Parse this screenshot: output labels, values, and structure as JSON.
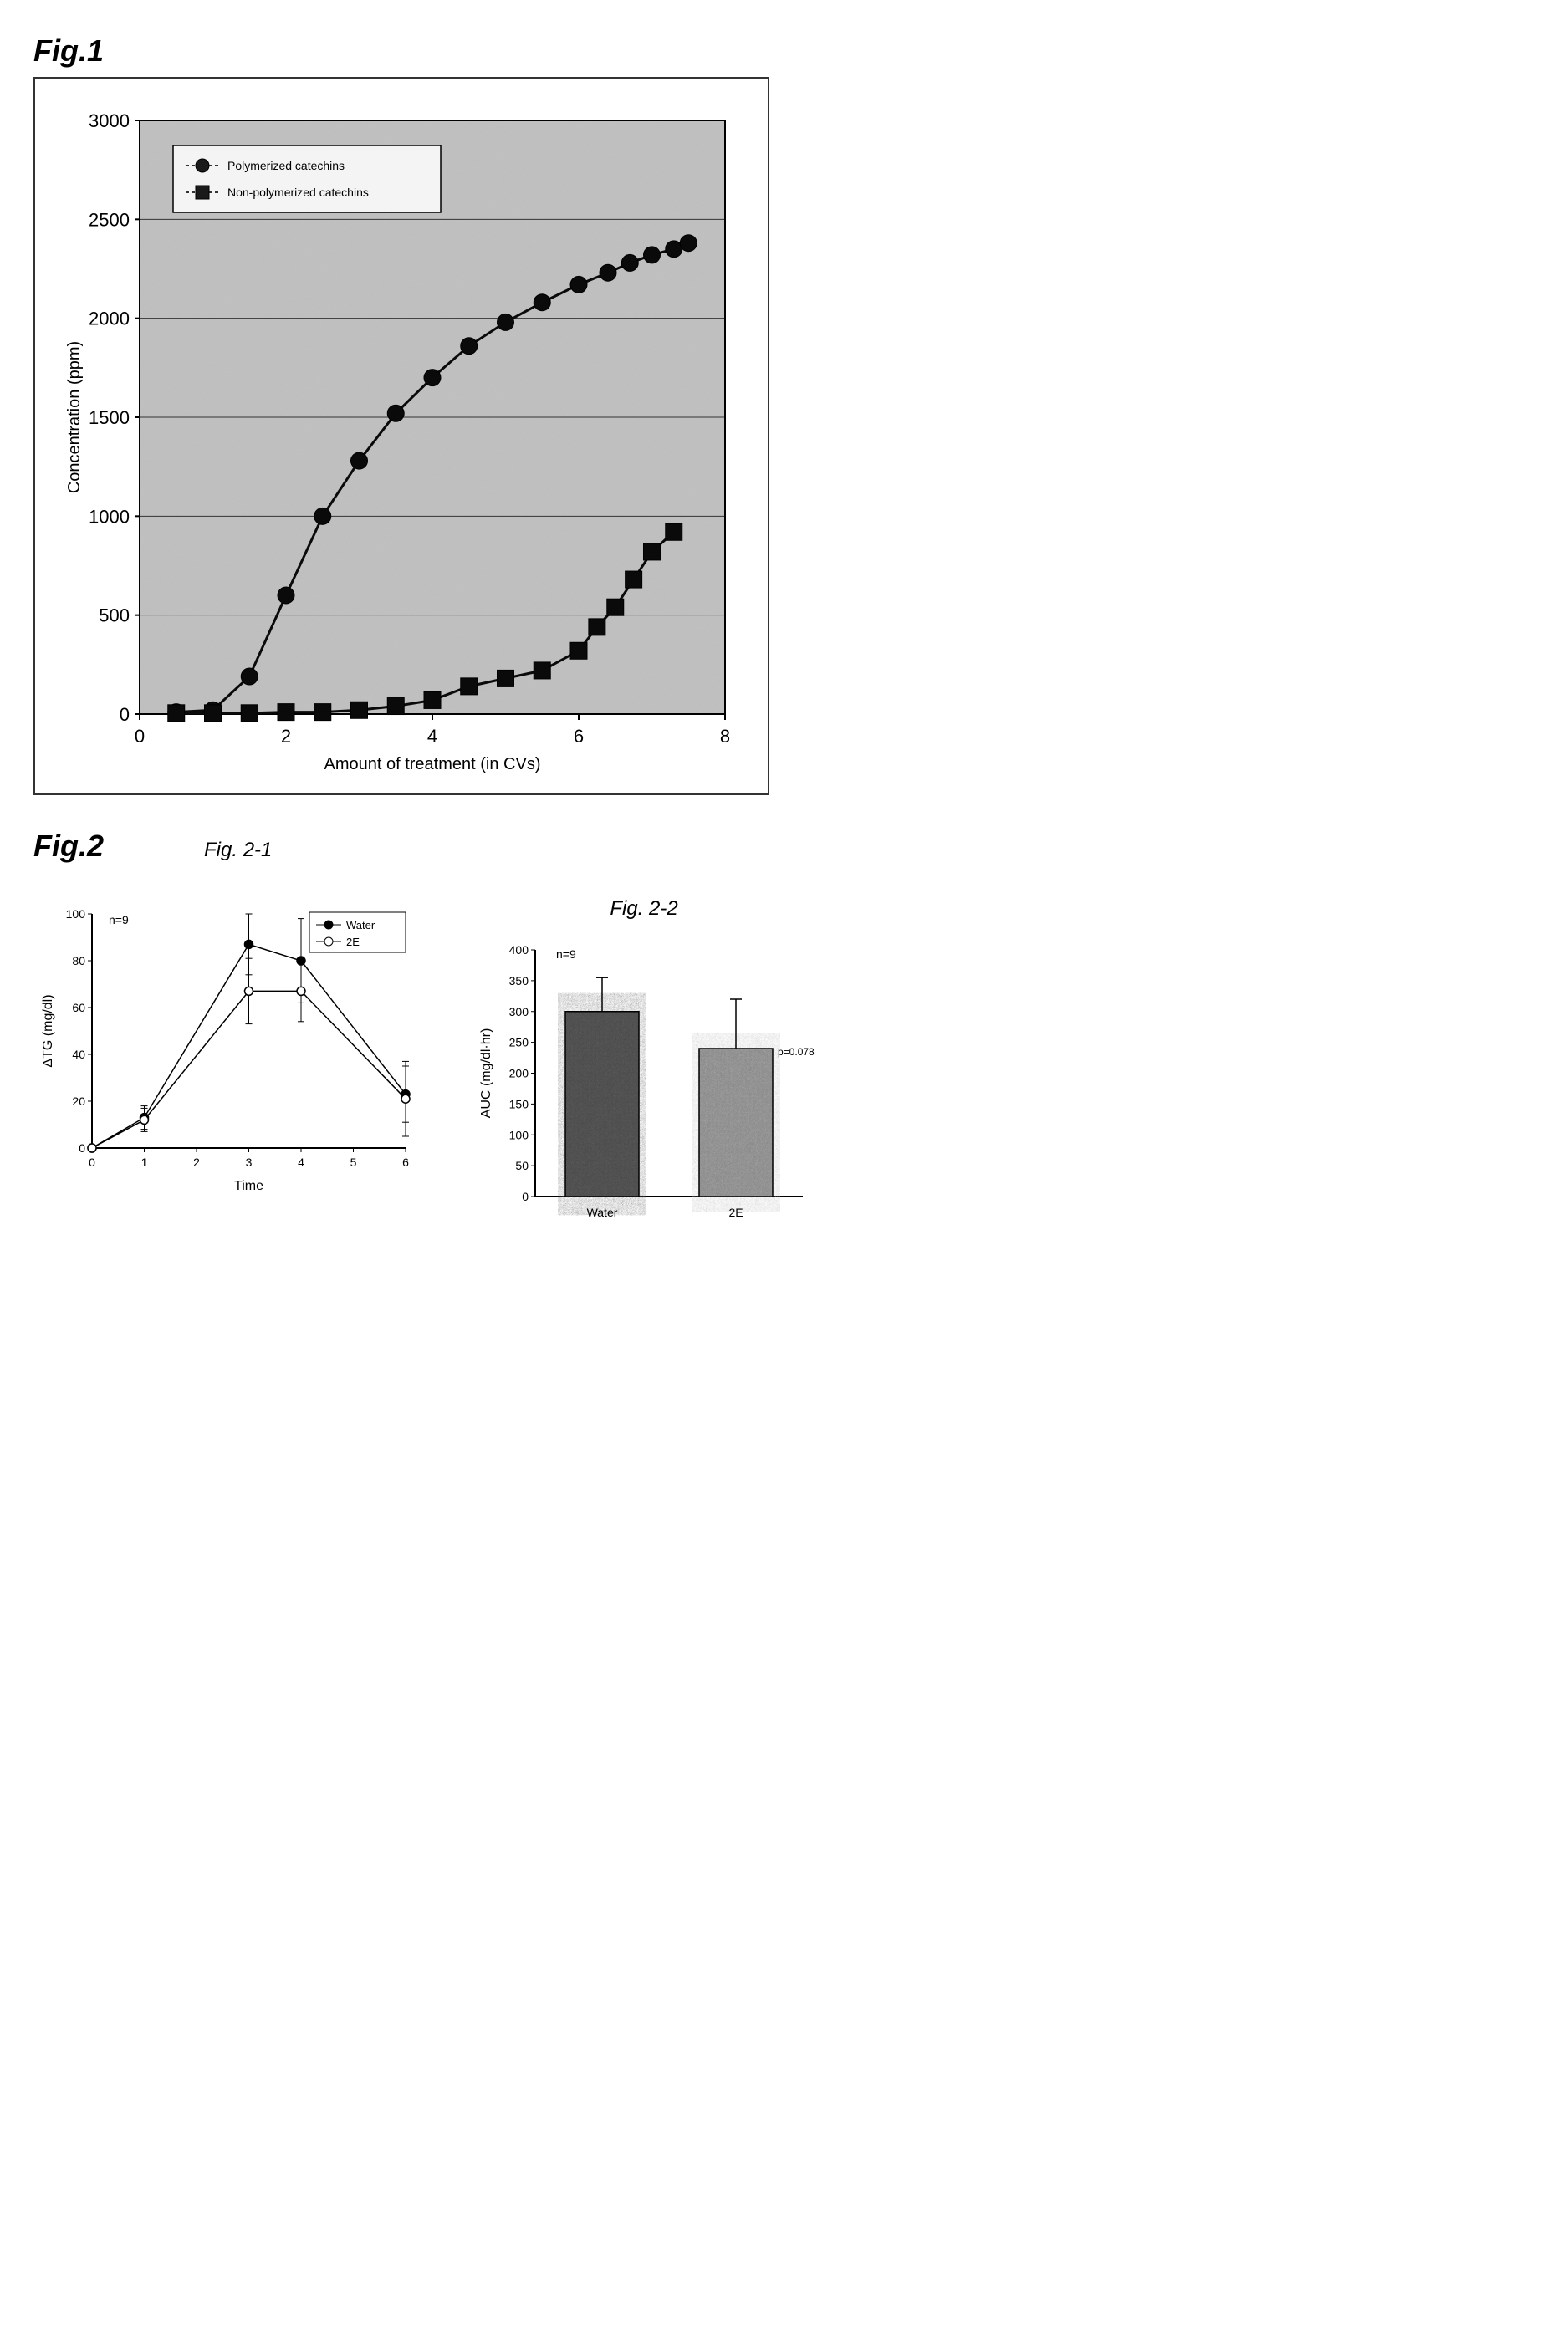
{
  "fig1": {
    "label": "Fig.1",
    "type": "line",
    "xlabel": "Amount of treatment (in CVs)",
    "ylabel": "Concentration (ppm)",
    "xlim": [
      0,
      8
    ],
    "ylim": [
      0,
      3000
    ],
    "xtick_step": 2,
    "ytick_step": 500,
    "background_texture": "noise",
    "plot_bg_low": "#8d8d8d",
    "plot_bg_high": "#d8d8d8",
    "grid_color": "#333333",
    "legend": {
      "items": [
        {
          "label": "Polymerized catechins",
          "marker": "circle",
          "fill": "#1a1a1a"
        },
        {
          "label": "Non-polymerized catechins",
          "marker": "square",
          "fill": "#1a1a1a"
        }
      ]
    },
    "series": [
      {
        "name": "Polymerized catechins",
        "marker": "circle",
        "color": "#0a0a0a",
        "line_width": 3,
        "marker_size": 10,
        "x": [
          0.5,
          1.0,
          1.5,
          2.0,
          2.5,
          3.0,
          3.5,
          4.0,
          4.5,
          5.0,
          5.5,
          6.0,
          6.4,
          6.7,
          7.0,
          7.3,
          7.5
        ],
        "y": [
          10,
          20,
          190,
          600,
          1000,
          1280,
          1520,
          1700,
          1860,
          1980,
          2080,
          2170,
          2230,
          2280,
          2320,
          2350,
          2380
        ]
      },
      {
        "name": "Non-polymerized catechins",
        "marker": "square",
        "color": "#0a0a0a",
        "line_width": 3,
        "marker_size": 10,
        "x": [
          0.5,
          1.0,
          1.5,
          2.0,
          2.5,
          3.0,
          3.5,
          4.0,
          4.5,
          5.0,
          5.5,
          6.0,
          6.25,
          6.5,
          6.75,
          7.0,
          7.3
        ],
        "y": [
          5,
          5,
          5,
          10,
          10,
          20,
          40,
          70,
          140,
          180,
          220,
          320,
          440,
          540,
          680,
          820,
          920
        ]
      }
    ],
    "title_fontsize": 20,
    "tick_fontsize": 22,
    "legend_fontsize": 14
  },
  "fig2": {
    "label": "Fig.2",
    "sub1": {
      "label": "Fig. 2-1",
      "type": "line",
      "n_label": "n=9",
      "xlabel": "Time",
      "ylabel": "ΔTG (mg/dl)",
      "xlim": [
        0,
        6
      ],
      "ylim": [
        0,
        100
      ],
      "xtick_step": 1,
      "ytick_step": 20,
      "legend": {
        "items": [
          {
            "label": "Water",
            "marker": "circle-filled",
            "fill": "#000000"
          },
          {
            "label": "2E",
            "marker": "circle-open",
            "fill": "#ffffff"
          }
        ]
      },
      "series": [
        {
          "name": "Water",
          "marker": "circle",
          "fill": "#000000",
          "stroke": "#000000",
          "line_width": 1.5,
          "x": [
            0,
            1,
            3,
            4,
            6
          ],
          "y": [
            0,
            13,
            87,
            80,
            23
          ],
          "err": [
            0,
            5,
            13,
            18,
            12
          ]
        },
        {
          "name": "2E",
          "marker": "circle",
          "fill": "#ffffff",
          "stroke": "#000000",
          "line_width": 1.5,
          "x": [
            0,
            1,
            3,
            4,
            6
          ],
          "y": [
            0,
            12,
            67,
            67,
            21
          ],
          "err": [
            0,
            5,
            14,
            13,
            16
          ]
        }
      ],
      "tick_fontsize": 14,
      "label_fontsize": 16
    },
    "sub2": {
      "label": "Fig. 2-2",
      "type": "bar",
      "n_label": "n=9",
      "ylabel": "AUC (mg/dl·hr)",
      "ylim": [
        0,
        400
      ],
      "ytick_step": 50,
      "categories": [
        "Water",
        "2E"
      ],
      "values": [
        300,
        240
      ],
      "errors": [
        55,
        80
      ],
      "p_annotation": "p=0.078",
      "bar_fill": "pattern",
      "bar_colors": [
        "#4a4a4a",
        "#888888"
      ],
      "bar_width": 0.55,
      "tick_fontsize": 14,
      "label_fontsize": 16
    }
  },
  "colors": {
    "text": "#000000",
    "axis": "#000000",
    "grid": "#444444",
    "background": "#ffffff"
  }
}
